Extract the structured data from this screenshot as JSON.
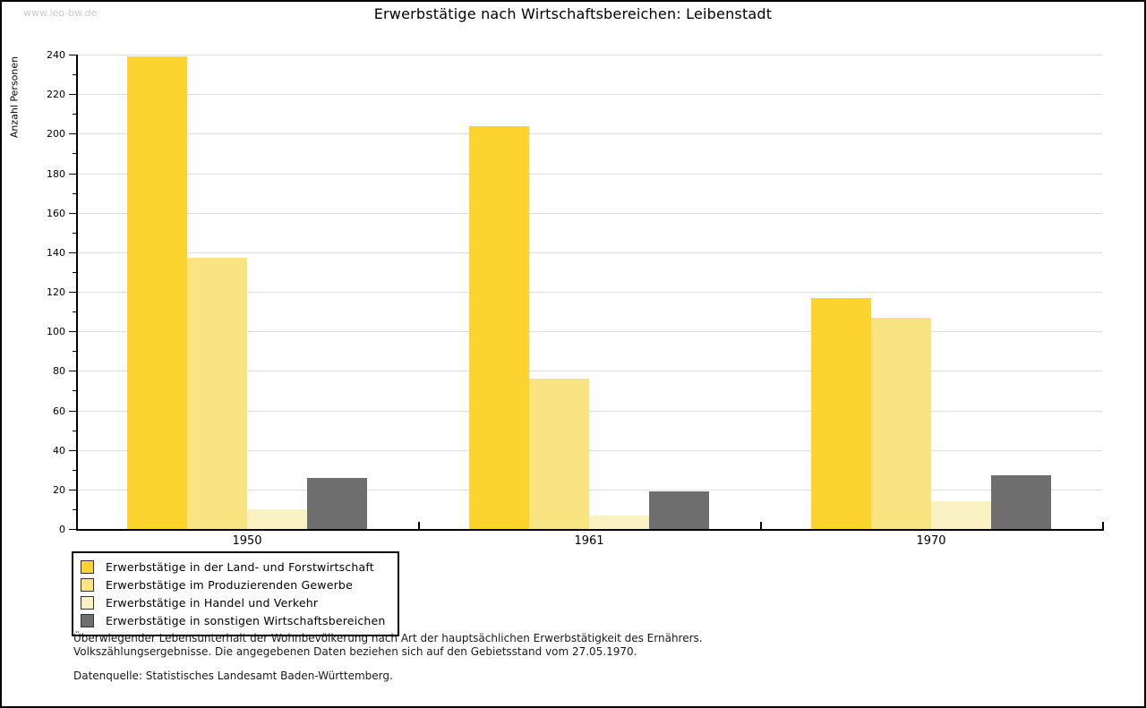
{
  "watermark": "www.leo-bw.de",
  "title": "Erwerbstätige nach Wirtschaftsbereichen: Leibenstadt",
  "chart_data": {
    "type": "bar",
    "title": "Erwerbstätige nach Wirtschaftsbereichen: Leibenstadt",
    "xlabel": "",
    "ylabel": "Anzahl Personen",
    "categories": [
      "1950",
      "1961",
      "1970"
    ],
    "series": [
      {
        "name": "Erwerbstätige in der Land- und Forstwirtschaft",
        "color": "#fcd32f",
        "values": [
          239,
          204,
          117
        ]
      },
      {
        "name": "Erwerbstätige im Produzierenden Gewerbe",
        "color": "#fae482",
        "values": [
          137,
          76,
          107
        ]
      },
      {
        "name": "Erwerbstätige in Handel und Verkehr",
        "color": "#fbf2c4",
        "values": [
          10,
          7,
          14
        ]
      },
      {
        "name": "Erwerbstätige in sonstigen Wirtschaftsbereichen",
        "color": "#6e6e6e",
        "values": [
          26,
          19,
          27
        ]
      }
    ],
    "ylim": [
      0,
      240
    ],
    "ytick_step": 20,
    "yminor_step": 10,
    "grid": true,
    "grid_color": "#dddddd",
    "legend_position": "bottom-left"
  },
  "footer": {
    "line1": "Überwiegender Lebensunterhalt der Wohnbevölkerung nach Art der hauptsächlichen Erwerbstätigkeit des Ernährers.",
    "line2": "Volkszählungsergebnisse. Die angegebenen Daten beziehen sich auf den Gebietsstand vom 27.05.1970.",
    "source": "Datenquelle: Statistisches Landesamt Baden-Württemberg."
  }
}
